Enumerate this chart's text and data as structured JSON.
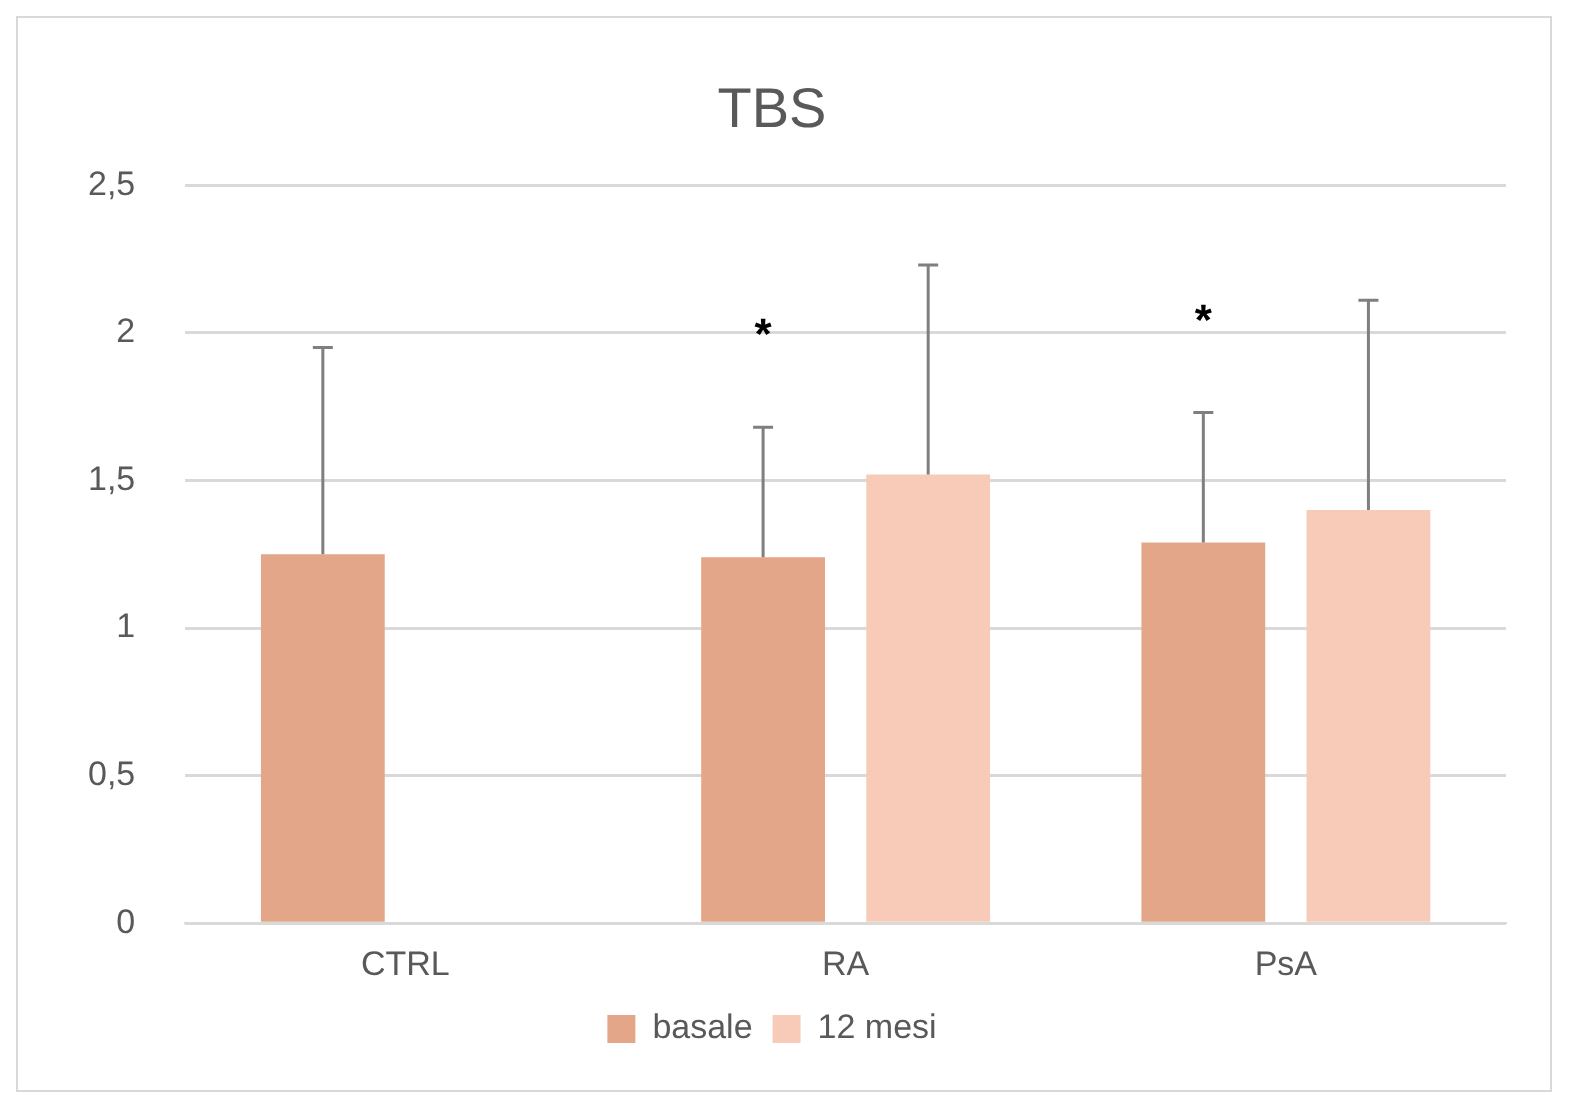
{
  "chart_data": {
    "type": "bar",
    "title": "TBS",
    "categories": [
      "CTRL",
      "RA",
      "PsA"
    ],
    "series": [
      {
        "name": "basale",
        "color": "#e4a688",
        "values": [
          1.25,
          1.24,
          1.29
        ],
        "errors": [
          [
            1.25,
            1.95
          ],
          [
            1.24,
            1.68
          ],
          [
            1.29,
            1.73
          ]
        ]
      },
      {
        "name": "12 mesi",
        "color": "#f8cbb8",
        "values": [
          null,
          1.52,
          1.4
        ],
        "errors": [
          null,
          [
            1.52,
            2.23
          ],
          [
            1.4,
            2.11
          ]
        ]
      }
    ],
    "ylim": [
      0,
      2.5
    ],
    "yticks": [
      0,
      {
        "value": 0.5,
        "label": "0,5"
      },
      1,
      {
        "value": 1.5,
        "label": "1,5"
      },
      2,
      {
        "value": 2.5,
        "label": "2,5"
      }
    ],
    "grid": "y",
    "legend": "bottom",
    "annotations": [
      "*",
      "*"
    ]
  }
}
